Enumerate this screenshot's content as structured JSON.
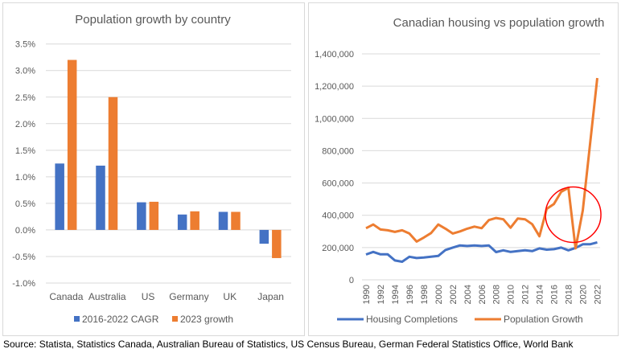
{
  "source": "Source: Statista, Statistics Canada, Australian Bureau of Statistics, US Census Bureau, German Federal Statistics Office, World Bank",
  "colors": {
    "blue": "#4472C4",
    "orange": "#ED7D31",
    "highlight_circle": "#FF0000",
    "grid": "#D9D9D9"
  },
  "chart_data": [
    {
      "type": "bar",
      "title": "Population growth by country",
      "categories": [
        "Canada",
        "Australia",
        "US",
        "Germany",
        "UK",
        "Japan"
      ],
      "series": [
        {
          "name": "2016-2022 CAGR",
          "values": [
            1.25,
            1.21,
            0.52,
            0.29,
            0.34,
            -0.26
          ]
        },
        {
          "name": "2023 growth",
          "values": [
            3.2,
            2.5,
            0.53,
            0.35,
            0.34,
            -0.53
          ]
        }
      ],
      "ylim": [
        -1.0,
        3.5
      ],
      "yticks": [
        "-1.0%",
        "-0.5%",
        "0.0%",
        "0.5%",
        "1.0%",
        "1.5%",
        "2.0%",
        "2.5%",
        "3.0%",
        "3.5%"
      ],
      "yunit": "%",
      "grid": true,
      "legend": "bottom"
    },
    {
      "type": "line",
      "title": "Canadian housing vs population growth",
      "x": [
        1990,
        1991,
        1992,
        1993,
        1994,
        1995,
        1996,
        1997,
        1998,
        1999,
        2000,
        2001,
        2002,
        2003,
        2004,
        2005,
        2006,
        2007,
        2008,
        2009,
        2010,
        2011,
        2012,
        2013,
        2014,
        2015,
        2016,
        2017,
        2018,
        2019,
        2020,
        2021,
        2022
      ],
      "xticks": [
        "1990",
        "1992",
        "1994",
        "1996",
        "1998",
        "2000",
        "2002",
        "2004",
        "2006",
        "2008",
        "2010",
        "2012",
        "2014",
        "2016",
        "2018",
        "2020",
        "2022"
      ],
      "series": [
        {
          "name": "Housing Completions",
          "values": [
            157000,
            173000,
            158000,
            158000,
            120000,
            112000,
            143000,
            135000,
            138000,
            143000,
            148000,
            185000,
            200000,
            213000,
            210000,
            213000,
            210000,
            213000,
            172000,
            183000,
            173000,
            178000,
            183000,
            178000,
            195000,
            187000,
            190000,
            200000,
            183000,
            198000,
            220000,
            220000,
            232000
          ]
        },
        {
          "name": "Population Growth",
          "values": [
            320000,
            343000,
            312000,
            307000,
            297000,
            307000,
            287000,
            237000,
            262000,
            290000,
            343000,
            317000,
            287000,
            300000,
            317000,
            330000,
            320000,
            370000,
            383000,
            375000,
            323000,
            380000,
            375000,
            345000,
            270000,
            440000,
            470000,
            545000,
            570000,
            195000,
            430000,
            840000,
            1250000
          ]
        }
      ],
      "ylim": [
        0,
        1400000
      ],
      "yticks": [
        "0",
        "200,000",
        "400,000",
        "600,000",
        "800,000",
        "1,000,000",
        "1,200,000",
        "1,400,000"
      ],
      "grid": true,
      "legend": "bottom",
      "annotation": {
        "type": "circle",
        "around_x": 2019
      }
    }
  ]
}
